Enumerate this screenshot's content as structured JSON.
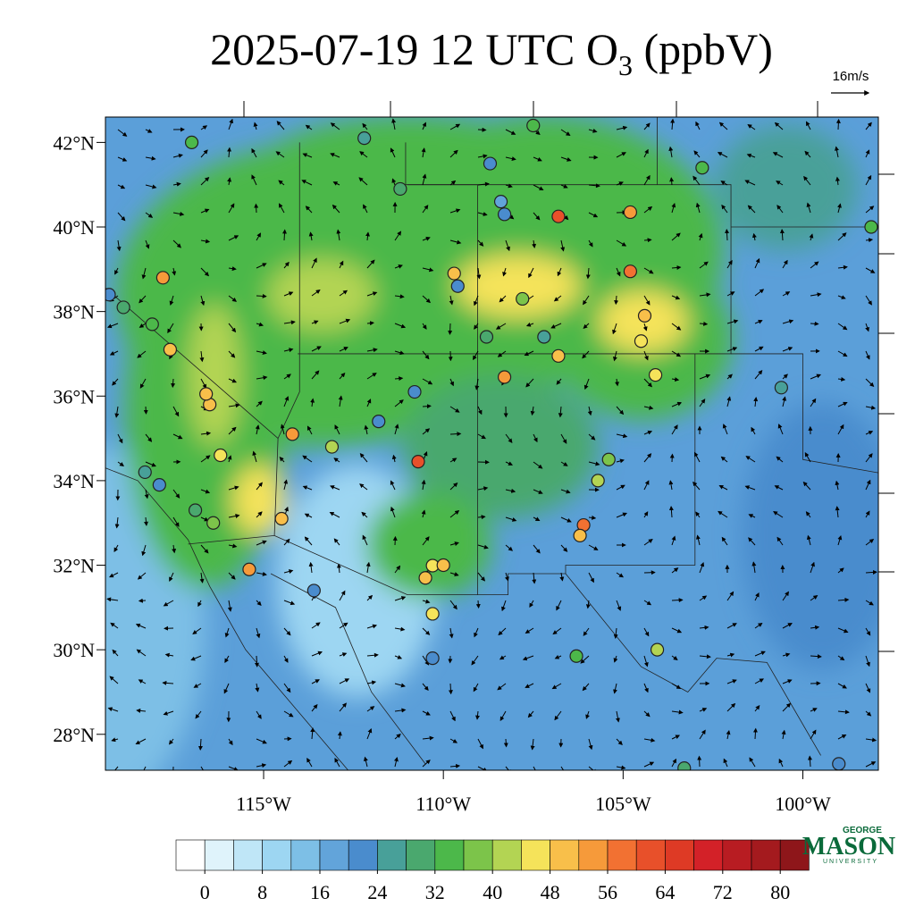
{
  "title": {
    "prefix": "2025-07-19 12 UTC O",
    "subscript": "3",
    "suffix": " (ppbV)"
  },
  "wind_reference": "16m/s",
  "map": {
    "lon_range": [
      -119.4,
      -97.9
    ],
    "lat_range": [
      42.6,
      27.15
    ],
    "lon_ticks": [
      {
        "value": -115,
        "label": "115°W"
      },
      {
        "value": -110,
        "label": "110°W"
      },
      {
        "value": -105,
        "label": "105°W"
      },
      {
        "value": -100,
        "label": "100°W"
      }
    ],
    "lat_ticks": [
      {
        "value": 42,
        "label": "42°N"
      },
      {
        "value": 40,
        "label": "40°N"
      },
      {
        "value": 38,
        "label": "38°N"
      },
      {
        "value": 36,
        "label": "36°N"
      },
      {
        "value": 34,
        "label": "34°N"
      },
      {
        "value": 32,
        "label": "32°N"
      },
      {
        "value": 30,
        "label": "30°N"
      },
      {
        "value": 28,
        "label": "28°N"
      }
    ]
  },
  "colorbar": {
    "colors": [
      "#ffffff",
      "#dff3fb",
      "#bfe6f7",
      "#9dd6f2",
      "#7dbfe6",
      "#62a4da",
      "#4a8ccd",
      "#48a099",
      "#4aa86e",
      "#4cb84a",
      "#7cc44a",
      "#b3d453",
      "#f5e35a",
      "#f8bf4a",
      "#f69a3a",
      "#f27132",
      "#e8502a",
      "#de3a25",
      "#d32128",
      "#b81c22",
      "#a41a1e",
      "#8e161a"
    ],
    "ticks": [
      0,
      8,
      16,
      24,
      32,
      40,
      48,
      56,
      64,
      72,
      80
    ]
  },
  "stations": [
    {
      "lon": -110.7,
      "lat": 34.45,
      "value": 62
    },
    {
      "lon": -106.8,
      "lat": 40.25,
      "value": 60
    },
    {
      "lon": -104.8,
      "lat": 38.95,
      "value": 56
    },
    {
      "lon": -104.8,
      "lat": 40.35,
      "value": 52
    },
    {
      "lon": -106.1,
      "lat": 32.95,
      "value": 56
    },
    {
      "lon": -106.2,
      "lat": 32.7,
      "value": 50
    },
    {
      "lon": -108.3,
      "lat": 36.45,
      "value": 52
    },
    {
      "lon": -106.8,
      "lat": 36.95,
      "value": 48
    },
    {
      "lon": -104.1,
      "lat": 36.5,
      "value": 46
    },
    {
      "lon": -104.4,
      "lat": 37.9,
      "value": 48
    },
    {
      "lon": -114.2,
      "lat": 35.1,
      "value": 52
    },
    {
      "lon": -116.5,
      "lat": 35.8,
      "value": 50
    },
    {
      "lon": -116.6,
      "lat": 36.05,
      "value": 50
    },
    {
      "lon": -117.6,
      "lat": 37.1,
      "value": 48
    },
    {
      "lon": -117.8,
      "lat": 38.8,
      "value": 52
    },
    {
      "lon": -115.4,
      "lat": 31.9,
      "value": 52
    },
    {
      "lon": -116.2,
      "lat": 34.6,
      "value": 46
    },
    {
      "lon": -114.5,
      "lat": 33.1,
      "value": 48
    },
    {
      "lon": -110.3,
      "lat": 31.99,
      "value": 46
    },
    {
      "lon": -110.5,
      "lat": 31.7,
      "value": 48
    },
    {
      "lon": -110.3,
      "lat": 30.85,
      "value": 46
    },
    {
      "lon": -110.0,
      "lat": 32.0,
      "value": 48
    },
    {
      "lon": -109.7,
      "lat": 38.9,
      "value": 48
    },
    {
      "lon": -104.05,
      "lat": 30.0,
      "value": 42
    },
    {
      "lon": -105.7,
      "lat": 34.0,
      "value": 42
    },
    {
      "lon": -105.4,
      "lat": 34.5,
      "value": 36
    },
    {
      "lon": -110.8,
      "lat": 36.1,
      "value": 20
    },
    {
      "lon": -108.7,
      "lat": 41.5,
      "value": 22
    },
    {
      "lon": -108.4,
      "lat": 40.6,
      "value": 18
    },
    {
      "lon": -108.3,
      "lat": 40.3,
      "value": 20
    },
    {
      "lon": -100.6,
      "lat": 36.2,
      "value": 24
    },
    {
      "lon": -99.0,
      "lat": 27.3,
      "value": 20
    },
    {
      "lon": -109.6,
      "lat": 38.6,
      "value": 22
    },
    {
      "lon": -118.9,
      "lat": 38.1,
      "value": 30
    },
    {
      "lon": -118.1,
      "lat": 37.7,
      "value": 32
    },
    {
      "lon": -112.2,
      "lat": 42.1,
      "value": 24
    },
    {
      "lon": -111.8,
      "lat": 35.4,
      "value": 22
    },
    {
      "lon": -119.3,
      "lat": 38.4,
      "value": 22
    },
    {
      "lon": -118.3,
      "lat": 34.2,
      "value": 26
    },
    {
      "lon": -117.9,
      "lat": 33.9,
      "value": 22
    },
    {
      "lon": -108.8,
      "lat": 37.4,
      "value": 30
    },
    {
      "lon": -107.5,
      "lat": 42.4,
      "value": 34
    },
    {
      "lon": -117.0,
      "lat": 42.0,
      "value": 34
    },
    {
      "lon": -103.3,
      "lat": 27.2,
      "value": 30
    },
    {
      "lon": -98.1,
      "lat": 40.0,
      "value": 32
    },
    {
      "lon": -107.2,
      "lat": 37.4,
      "value": 26
    },
    {
      "lon": -113.6,
      "lat": 31.4,
      "value": 22
    },
    {
      "lon": -110.3,
      "lat": 29.8,
      "value": 22
    },
    {
      "lon": -111.2,
      "lat": 40.9,
      "value": 30
    },
    {
      "lon": -107.8,
      "lat": 38.3,
      "value": 36
    },
    {
      "lon": -106.3,
      "lat": 29.85,
      "value": 34
    },
    {
      "lon": -102.8,
      "lat": 41.4,
      "value": 32
    },
    {
      "lon": -116.9,
      "lat": 33.3,
      "value": 30
    },
    {
      "lon": -116.4,
      "lat": 33.0,
      "value": 36
    },
    {
      "lon": -113.1,
      "lat": 34.8,
      "value": 40
    },
    {
      "lon": -104.5,
      "lat": 37.3,
      "value": 44
    }
  ],
  "logo": {
    "top": "GEORGE",
    "main": "MASON",
    "bottom": "UNIVERSITY"
  }
}
